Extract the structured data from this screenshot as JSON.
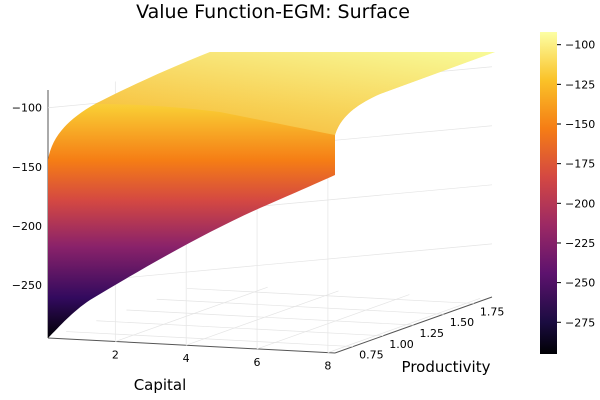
{
  "chart_data": {
    "type": "surface",
    "title": "Value Function-EGM: Surface",
    "xlabel": "Capital",
    "ylabel": "Productivity",
    "zlabel": "",
    "x_ticks": [
      2,
      4,
      6,
      8
    ],
    "y_ticks": [
      0.75,
      1.0,
      1.25,
      1.5,
      1.75
    ],
    "z_ticks": [
      -100,
      -150,
      -200,
      -250
    ],
    "xlim": [
      0.1,
      8.2
    ],
    "ylim": [
      0.6,
      1.9
    ],
    "zlim": [
      -295,
      -85
    ],
    "grid": true,
    "colormap": "inferno",
    "colorbar": {
      "ticks": [
        -100,
        -125,
        -150,
        -175,
        -200,
        -225,
        -250,
        -275
      ],
      "range": [
        -295,
        -92
      ]
    },
    "surface_edge_samples": {
      "front_edge_capital": [
        0.1,
        0.5,
        1,
        2,
        3,
        4,
        5,
        6,
        7,
        8
      ],
      "front_edge_value": [
        -295,
        -255,
        -238,
        -215,
        -200,
        -190,
        -180,
        -172,
        -166,
        -163
      ],
      "low_productivity_profile_capital": [
        0.1,
        0.5,
        1,
        2,
        4,
        6,
        8
      ],
      "low_productivity_profile_value": [
        -180,
        -158,
        -148,
        -136,
        -122,
        -112,
        -106
      ]
    }
  }
}
